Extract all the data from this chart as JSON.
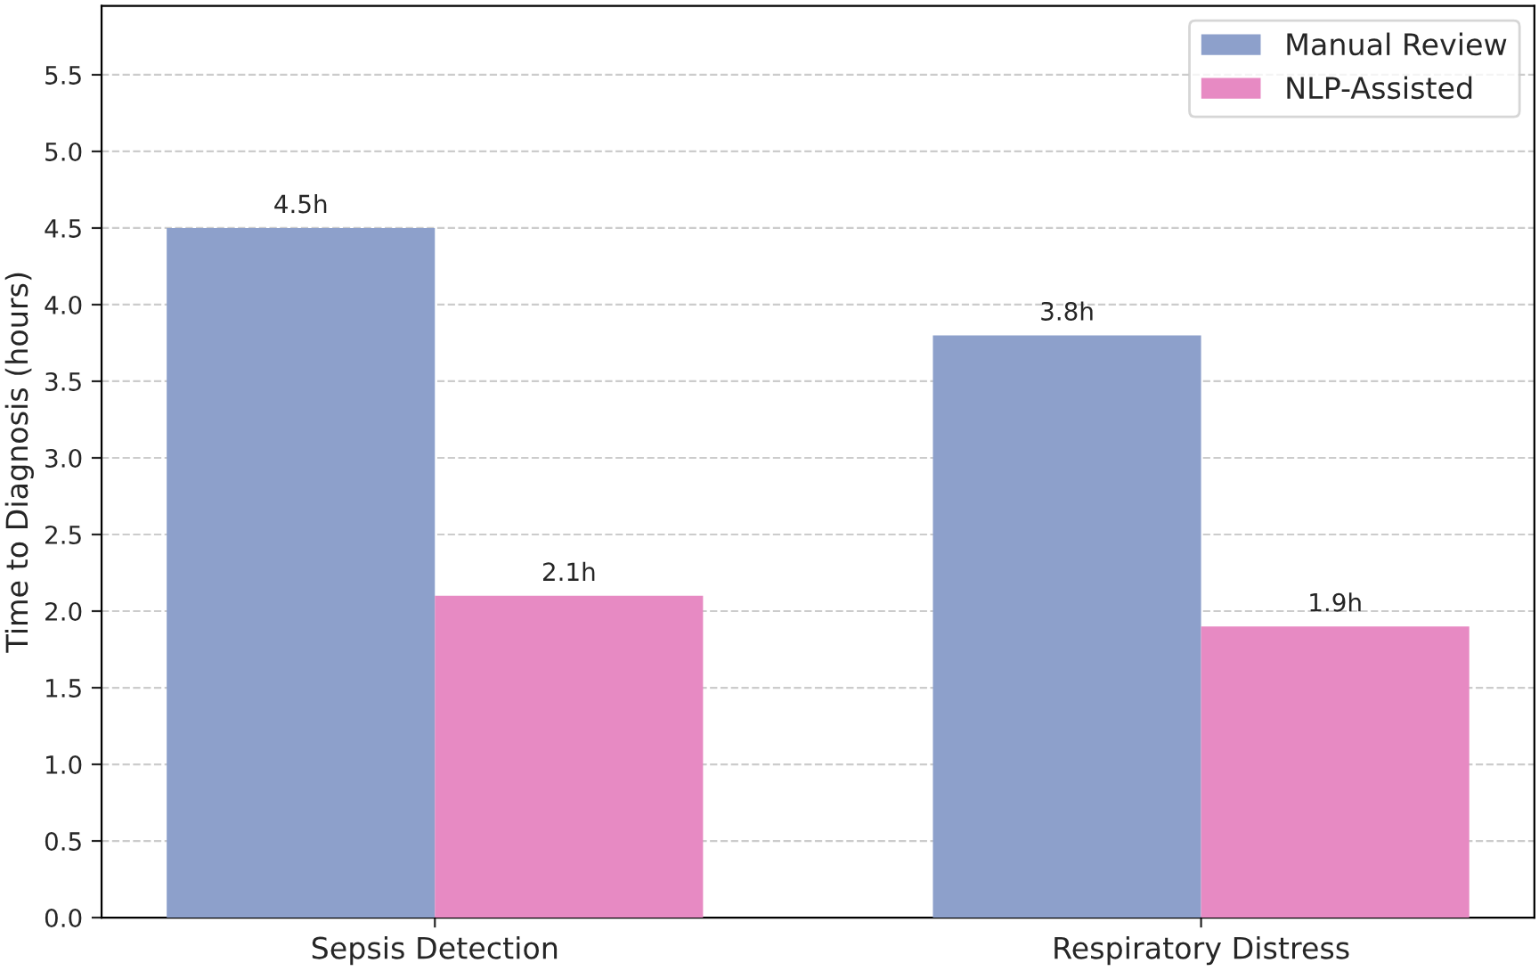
{
  "chart_data": {
    "type": "bar",
    "ylabel": "Time to Diagnosis (hours)",
    "categories": [
      "Sepsis Detection",
      "Respiratory Distress"
    ],
    "series": [
      {
        "name": "Manual Review",
        "color": "#8da0cb",
        "values": [
          4.5,
          3.8
        ],
        "value_labels": [
          "4.5h",
          "3.8h"
        ]
      },
      {
        "name": "NLP-Assisted",
        "color": "#e78ac3",
        "values": [
          2.1,
          1.9
        ],
        "value_labels": [
          "2.1h",
          "1.9h"
        ]
      }
    ],
    "ylim": [
      0,
      5.95
    ],
    "yticks": [
      {
        "value": 0,
        "label": "0.0"
      },
      0.5,
      {
        "value": 1,
        "label": "1.0"
      },
      1.5,
      {
        "value": 2,
        "label": "2.0"
      },
      2.5,
      {
        "value": 3,
        "label": "3.0"
      },
      3.5,
      {
        "value": 4,
        "label": "4.0"
      },
      4.5,
      {
        "value": 5,
        "label": "5.0"
      },
      5.5
    ],
    "grid": "y",
    "legend": "top right"
  }
}
